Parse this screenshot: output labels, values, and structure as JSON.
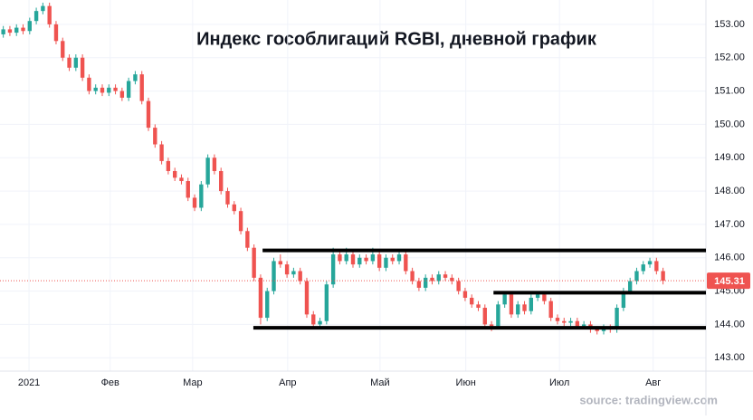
{
  "chart_data": {
    "type": "candlestick",
    "title": "Индекс гособлигаций RGBI, дневной график",
    "source": "source: tradingview.com",
    "up_color": "#26a69a",
    "down_color": "#ef5350",
    "level_color": "#000000",
    "grid": true,
    "xlim": [
      -0.5,
      106.5
    ],
    "ylim": [
      142.6,
      153.73
    ],
    "xticks": [
      {
        "value": 3.9,
        "label": "2021"
      },
      {
        "value": 16.2,
        "label": "Фев"
      },
      {
        "value": 28.7,
        "label": "Мар"
      },
      {
        "value": 43.1,
        "label": "Апр"
      },
      {
        "value": 57.1,
        "label": "Май"
      },
      {
        "value": 70.1,
        "label": "Июн"
      },
      {
        "value": 84.3,
        "label": "Июл"
      },
      {
        "value": 98.5,
        "label": "Авг"
      }
    ],
    "yticks": [
      {
        "value": 143,
        "label": "143.00"
      },
      {
        "value": 144,
        "label": "144.00"
      },
      {
        "value": 145,
        "label": "145.00"
      },
      {
        "value": 146,
        "label": "146.00"
      },
      {
        "value": 147,
        "label": "147.00"
      },
      {
        "value": 148,
        "label": "148.00"
      },
      {
        "value": 149,
        "label": "149.00"
      },
      {
        "value": 150,
        "label": "150.00"
      },
      {
        "value": 151,
        "label": "151.00"
      },
      {
        "value": 152,
        "label": "152.00"
      },
      {
        "value": 153,
        "label": "153.00"
      }
    ],
    "open": [
      152.7,
      152.85,
      152.75,
      152.9,
      152.8,
      153.1,
      153.4,
      153.55,
      153.0,
      152.5,
      152.0,
      151.7,
      152.0,
      151.4,
      151.0,
      151.1,
      150.95,
      151.1,
      151.0,
      150.8,
      151.3,
      151.5,
      150.7,
      149.9,
      149.4,
      148.9,
      148.6,
      148.4,
      148.3,
      147.8,
      147.5,
      148.2,
      149.0,
      148.6,
      148.0,
      147.6,
      147.4,
      146.8,
      146.3,
      145.4,
      144.2,
      145.0,
      145.9,
      145.8,
      145.5,
      145.6,
      145.3,
      144.3,
      144.0,
      144.1,
      145.2,
      146.1,
      145.9,
      146.1,
      145.8,
      146.0,
      145.9,
      146.1,
      145.7,
      146.0,
      145.9,
      146.1,
      145.6,
      145.3,
      145.1,
      145.4,
      145.3,
      145.5,
      145.4,
      145.3,
      145.0,
      144.8,
      144.6,
      144.5,
      144.0,
      143.95,
      144.6,
      144.9,
      144.3,
      144.6,
      144.4,
      144.8,
      144.9,
      144.7,
      144.2,
      144.1,
      144.05,
      144.1,
      143.95,
      144.0,
      143.85,
      143.8,
      143.9,
      143.85,
      144.5,
      145.0,
      145.3,
      145.6,
      145.8,
      145.9,
      145.6
    ],
    "high": [
      152.95,
      152.95,
      153.0,
      153.0,
      153.2,
      153.5,
      153.65,
      153.65,
      153.1,
      152.6,
      152.1,
      152.1,
      152.1,
      151.5,
      151.2,
      151.2,
      151.2,
      151.2,
      151.1,
      151.4,
      151.6,
      151.6,
      150.8,
      150.0,
      149.5,
      149.0,
      148.7,
      148.5,
      148.4,
      147.9,
      148.3,
      149.1,
      149.1,
      148.7,
      148.1,
      147.7,
      147.5,
      146.9,
      146.4,
      145.5,
      145.1,
      146.0,
      146.1,
      145.9,
      145.7,
      145.7,
      145.4,
      144.4,
      144.2,
      145.3,
      146.3,
      146.2,
      146.3,
      146.2,
      146.1,
      146.1,
      146.3,
      146.2,
      146.1,
      146.1,
      146.2,
      146.2,
      145.7,
      145.4,
      145.5,
      145.5,
      145.6,
      145.6,
      145.5,
      145.4,
      145.1,
      144.9,
      144.7,
      144.6,
      144.1,
      144.7,
      145.0,
      145.0,
      144.7,
      144.7,
      144.9,
      145.0,
      145.0,
      144.8,
      144.3,
      144.2,
      144.2,
      144.2,
      144.1,
      144.1,
      143.95,
      144.0,
      144.0,
      144.6,
      145.1,
      145.4,
      145.7,
      145.9,
      146.0,
      146.0,
      145.7
    ],
    "low": [
      152.6,
      152.65,
      152.65,
      152.7,
      152.7,
      153.0,
      153.3,
      152.9,
      152.4,
      151.9,
      151.6,
      151.6,
      151.3,
      150.9,
      150.9,
      150.85,
      150.85,
      150.9,
      150.7,
      150.7,
      151.2,
      150.6,
      149.8,
      149.3,
      148.8,
      148.5,
      148.3,
      148.2,
      147.7,
      147.4,
      147.4,
      148.1,
      148.5,
      147.9,
      147.5,
      147.3,
      146.7,
      146.2,
      145.3,
      144.0,
      144.1,
      144.9,
      145.7,
      145.4,
      145.4,
      145.2,
      144.2,
      143.9,
      143.9,
      144.0,
      145.1,
      145.8,
      145.8,
      145.7,
      145.7,
      145.8,
      145.8,
      145.6,
      145.6,
      145.8,
      145.8,
      145.5,
      145.2,
      145.0,
      145.0,
      145.2,
      145.2,
      145.3,
      145.2,
      144.9,
      144.7,
      144.5,
      144.4,
      143.9,
      143.8,
      143.85,
      144.5,
      144.2,
      144.2,
      144.3,
      144.3,
      144.7,
      144.6,
      144.1,
      144.0,
      143.95,
      143.95,
      143.85,
      143.85,
      143.75,
      143.7,
      143.7,
      143.75,
      143.75,
      144.4,
      144.9,
      145.2,
      145.5,
      145.7,
      145.5,
      145.2
    ],
    "close": [
      152.85,
      152.75,
      152.9,
      152.8,
      153.1,
      153.4,
      153.55,
      153.0,
      152.5,
      152.0,
      151.7,
      152.0,
      151.4,
      151.0,
      151.1,
      150.95,
      151.1,
      151.0,
      150.8,
      151.3,
      151.5,
      150.7,
      149.9,
      149.4,
      148.9,
      148.6,
      148.4,
      148.3,
      147.8,
      147.5,
      148.2,
      149.0,
      148.6,
      148.0,
      147.6,
      147.4,
      146.8,
      146.3,
      145.4,
      144.2,
      145.0,
      145.9,
      145.8,
      145.5,
      145.6,
      145.3,
      144.3,
      144.0,
      144.1,
      145.2,
      146.1,
      145.9,
      146.1,
      145.8,
      146.0,
      145.9,
      146.1,
      145.7,
      146.0,
      145.9,
      146.1,
      145.6,
      145.3,
      145.1,
      145.4,
      145.3,
      145.5,
      145.4,
      145.3,
      145.0,
      144.8,
      144.6,
      144.5,
      144.0,
      143.95,
      144.6,
      144.9,
      144.3,
      144.6,
      144.4,
      144.8,
      144.9,
      144.7,
      144.2,
      144.1,
      144.05,
      144.1,
      143.95,
      144.0,
      143.85,
      143.8,
      143.9,
      143.85,
      144.5,
      145.0,
      145.3,
      145.6,
      145.8,
      145.9,
      145.6,
      145.31
    ],
    "levels": [
      {
        "value": 146.22,
        "from": 39.3
      },
      {
        "value": 144.95,
        "from": 74.3
      },
      {
        "value": 143.9,
        "from": 37.9
      }
    ]
  }
}
